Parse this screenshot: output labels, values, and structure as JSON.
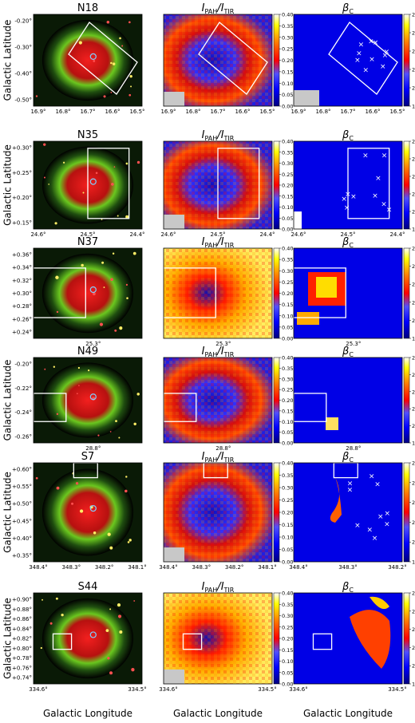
{
  "figure": {
    "column_titles": {
      "ratio": "I_PAH/I_TIR",
      "beta": "β_C"
    },
    "x_axis_label": "Galactic Longitude",
    "y_axis_label": "Galactic Latitude",
    "colorbars": {
      "ratio": {
        "min": 0.0,
        "max": 0.4,
        "ticks": [
          "0.40",
          "0.35",
          "0.30",
          "0.25",
          "0.20",
          "0.15",
          "0.10",
          "0.05",
          "0.00"
        ]
      },
      "beta": {
        "min": 1.8,
        "max": 2.8,
        "ticks": [
          "2.8",
          "2.6",
          "2.4",
          "2.2",
          "2.0",
          "1.8"
        ]
      },
      "colormap": [
        "#000080",
        "#0000ff",
        "#4040ff",
        "#ff0000",
        "#ff8000",
        "#ffff00",
        "#ffffff"
      ]
    },
    "rows": [
      {
        "name": "N18",
        "ylabel_visible": true,
        "y_ticks": [
          "-0.20°",
          "-0.30°",
          "-0.40°",
          "-0.50°"
        ],
        "x_ticks": [
          "16.9°",
          "16.8°",
          "16.7°",
          "16.6°",
          "16.5°"
        ],
        "x_ticks_beta": [
          "16.9°",
          "16.8°",
          "16.7°",
          "16.6°",
          "16.5°"
        ]
      },
      {
        "name": "N35",
        "ylabel_visible": true,
        "y_ticks": [
          "+0.30°",
          "+0.25°",
          "+0.20°",
          "+0.15°"
        ],
        "x_ticks": [
          "24.6°",
          "24.5°",
          "24.4°"
        ],
        "x_ticks_beta": [
          "24.6°",
          "24.5°",
          "24.4°"
        ]
      },
      {
        "name": "N37",
        "ylabel_visible": false,
        "y_ticks": [
          "+0.36°",
          "+0.34°",
          "+0.32°",
          "+0.30°",
          "+0.28°",
          "+0.26°",
          "+0.24°"
        ],
        "x_ticks": [
          "25.3°"
        ],
        "x_ticks_beta": [
          "25.3°"
        ]
      },
      {
        "name": "N49",
        "ylabel_visible": true,
        "y_ticks": [
          "-0.20°",
          "-0.22°",
          "-0.24°",
          "-0.26°"
        ],
        "x_ticks": [
          "28.8°"
        ],
        "x_ticks_beta": [
          "28.8°"
        ]
      },
      {
        "name": "S7",
        "ylabel_visible": true,
        "y_ticks": [
          "+0.60°",
          "+0.55°",
          "+0.50°",
          "+0.45°",
          "+0.40°",
          "+0.35°"
        ],
        "x_ticks": [
          "348.4°",
          "348.3°",
          "348.2°",
          "348.1°"
        ],
        "x_ticks_beta": [
          "348.4°",
          "348.3°",
          "348.2°"
        ]
      },
      {
        "name": "S44",
        "ylabel_visible": true,
        "y_ticks": [
          "+0.90°",
          "+0.88°",
          "+0.86°",
          "+0.84°",
          "+0.82°",
          "+0.80°",
          "+0.78°",
          "+0.76°",
          "+0.74°"
        ],
        "x_ticks": [
          "334.6°",
          "334.5°"
        ],
        "x_ticks_beta": [
          "334.6°",
          "334.5°"
        ]
      }
    ]
  }
}
